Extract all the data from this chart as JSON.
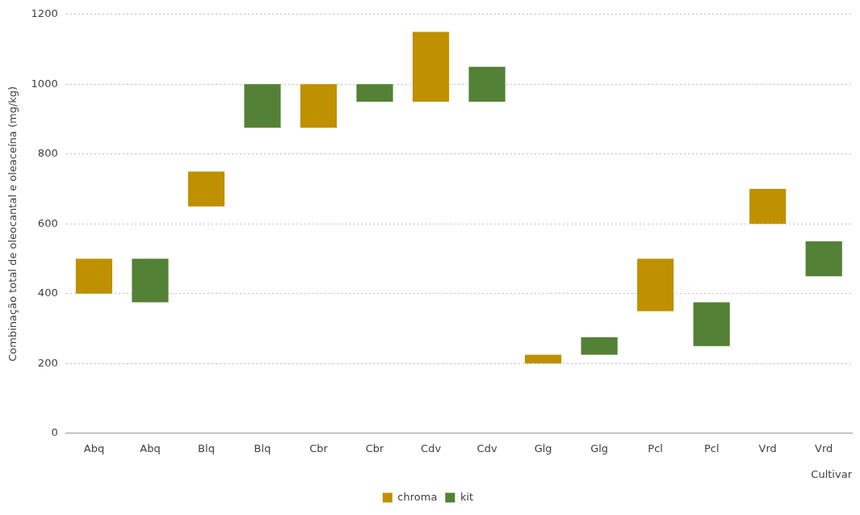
{
  "chart_data": {
    "type": "bar",
    "ylabel": "Combinação total de oleocantal e oleaceína (mg/kg)",
    "xlabel": "Cultivar",
    "categories": [
      "Abq",
      "Abq",
      "Blq",
      "Blq",
      "Cbr",
      "Cbr",
      "Cdv",
      "Cdv",
      "Glg",
      "Glg",
      "Pcl",
      "Pcl",
      "Vrd",
      "Vrd"
    ],
    "series": [
      {
        "name": "chroma",
        "color": "#bf9000",
        "base": [
          400,
          null,
          650,
          null,
          875,
          null,
          950,
          null,
          200,
          null,
          350,
          null,
          600,
          null
        ],
        "values": [
          100,
          null,
          100,
          null,
          125,
          null,
          200,
          null,
          25,
          null,
          150,
          null,
          100,
          null
        ]
      },
      {
        "name": "kit",
        "color": "#538135",
        "base": [
          null,
          375,
          null,
          875,
          null,
          950,
          null,
          950,
          null,
          225,
          null,
          250,
          null,
          450
        ],
        "values": [
          null,
          125,
          null,
          125,
          null,
          50,
          null,
          100,
          null,
          50,
          null,
          125,
          null,
          100
        ]
      }
    ],
    "ylim": [
      0,
      1200
    ],
    "yticks": [
      0,
      200,
      400,
      600,
      800,
      1000,
      1200
    ],
    "grid": "y",
    "legend": "bottom"
  }
}
